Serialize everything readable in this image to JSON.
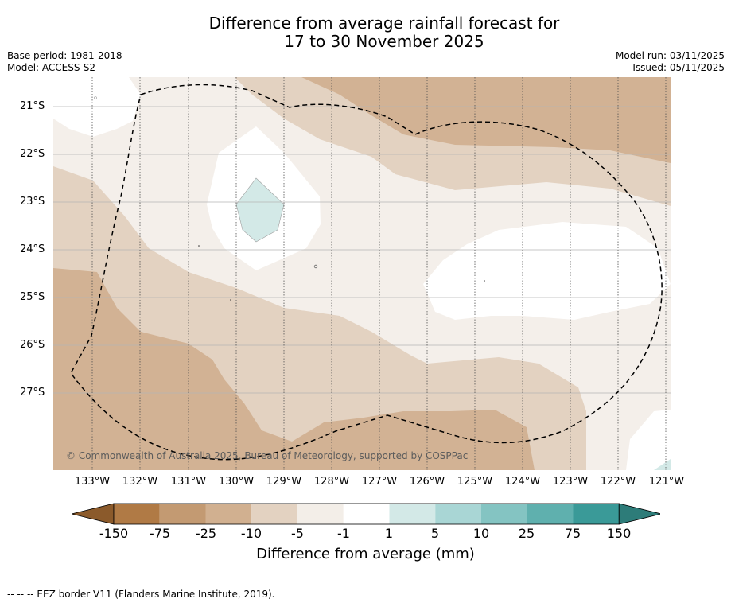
{
  "title": {
    "line1": "Difference from average rainfall forecast for",
    "line2": "17 to 30 November 2025"
  },
  "meta_left": {
    "base_period": "Base period: 1981-2018",
    "model": "Model: ACCESS-S2"
  },
  "meta_right": {
    "model_run": "Model run: 03/11/2025",
    "issued": "Issued: 05/11/2025"
  },
  "latitude_labels": [
    "21°S",
    "22°S",
    "23°S",
    "24°S",
    "25°S",
    "26°S",
    "27°S"
  ],
  "longitude_labels": [
    "133°W",
    "132°W",
    "131°W",
    "130°W",
    "129°W",
    "128°W",
    "127°W",
    "126°W",
    "125°W",
    "124°W",
    "123°W",
    "122°W",
    "121°W"
  ],
  "copyright": "© Commonwealth of Australia 2025, Bureau of Meteorology, supported by COSPPac",
  "colorbar": {
    "ticks": [
      "-150",
      "-75",
      "-25",
      "-10",
      "-5",
      "-1",
      "1",
      "5",
      "10",
      "25",
      "75",
      "150"
    ],
    "label": "Difference from average (mm)",
    "colors": [
      "#8b5a2b",
      "#b07a45",
      "#c39a72",
      "#d1b090",
      "#e3d2c1",
      "#f3eee8",
      "#ffffff",
      "#d3e9e7",
      "#a9d6d5",
      "#84c4c2",
      "#5fb0ae",
      "#3a9a98",
      "#2d7c79"
    ]
  },
  "map_colors": {
    "band_neg25_neg10": "#d2b294",
    "band_neg10_neg5": "#e3d2c1",
    "band_neg5_neg1": "#f4efea",
    "band_neg1_1": "#ffffff",
    "band_1_5": "#d3e9e7"
  },
  "footnote": "-- -- -- EEZ border V11 (Flanders Marine Institute, 2019)."
}
